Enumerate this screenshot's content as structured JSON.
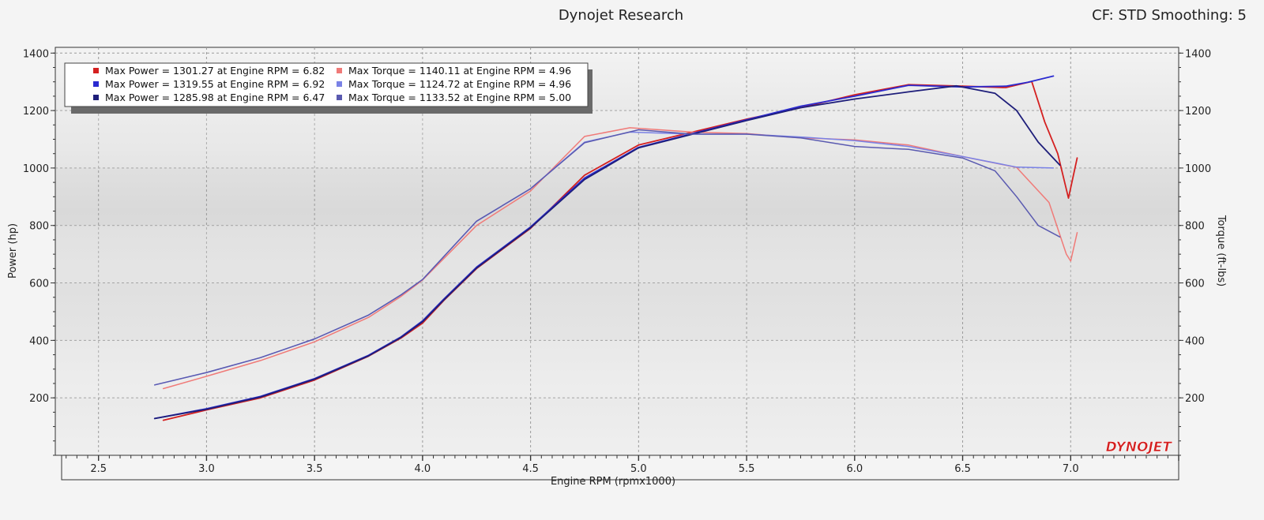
{
  "header": {
    "title": "Dynojet Research",
    "settings": "CF: STD Smoothing: 5"
  },
  "logo": "DYNOJET",
  "colors": {
    "red_power": "#d42020",
    "red_torque": "#f07a78",
    "blue_power": "#2a2ad0",
    "blue_torque": "#7a82e6",
    "navy_power": "#1e1e7a",
    "navy_torque": "#5a5ab0"
  },
  "chart_data": {
    "type": "line",
    "xlabel": "Engine RPM (rpmx1000)",
    "ylabel_left": "Power (hp)",
    "ylabel_right": "Torque (ft-lbs)",
    "xlim": [
      2.3,
      7.5
    ],
    "ylim": [
      0,
      1420
    ],
    "x_ticks": [
      "2.5",
      "3.0",
      "3.5",
      "4.0",
      "4.5",
      "5.0",
      "5.5",
      "6.0",
      "6.5",
      "7.0"
    ],
    "y_ticks": [
      "200",
      "400",
      "600",
      "800",
      "1000",
      "1200",
      "1400"
    ],
    "grid": true,
    "legend_placement": "top-left",
    "legend": [
      {
        "label": "Max Power = 1301.27 at Engine RPM = 6.82",
        "color": "#d42020"
      },
      {
        "label": "Max Torque = 1140.11 at Engine RPM = 4.96",
        "color": "#f07a78"
      },
      {
        "label": "Max Power = 1319.55 at Engine RPM = 6.92",
        "color": "#2a2ad0"
      },
      {
        "label": "Max Torque = 1124.72 at Engine RPM = 4.96",
        "color": "#7a82e6"
      },
      {
        "label": "Max Power = 1285.98 at Engine RPM = 6.47",
        "color": "#1e1e7a"
      },
      {
        "label": "Max Torque = 1133.52 at Engine RPM = 5.00",
        "color": "#5a5ab0"
      }
    ],
    "series": [
      {
        "color": "#d42020",
        "kind": "power",
        "x": [
          2.8,
          3.0,
          3.25,
          3.5,
          3.75,
          3.9,
          4.0,
          4.1,
          4.25,
          4.5,
          4.75,
          5.0,
          5.25,
          5.5,
          5.75,
          6.0,
          6.25,
          6.5,
          6.7,
          6.82,
          6.88,
          6.94,
          6.99,
          7.03
        ],
        "y": [
          122,
          158,
          200,
          262,
          345,
          408,
          460,
          540,
          650,
          790,
          975,
          1080,
          1125,
          1170,
          1210,
          1255,
          1290,
          1285,
          1280,
          1301,
          1160,
          1050,
          895,
          1035
        ]
      },
      {
        "color": "#f07a78",
        "kind": "torque",
        "x": [
          2.8,
          3.0,
          3.25,
          3.5,
          3.75,
          3.9,
          4.0,
          4.25,
          4.5,
          4.75,
          4.96,
          5.25,
          5.5,
          5.75,
          6.0,
          6.25,
          6.5,
          6.75,
          6.9,
          6.98,
          7.0,
          7.03
        ],
        "y": [
          232,
          275,
          330,
          395,
          480,
          553,
          610,
          800,
          920,
          1110,
          1140,
          1125,
          1120,
          1105,
          1098,
          1080,
          1040,
          1002,
          880,
          700,
          676,
          775
        ]
      },
      {
        "color": "#2a2ad0",
        "kind": "power",
        "x": [
          2.76,
          3.0,
          3.25,
          3.5,
          3.75,
          3.9,
          4.0,
          4.1,
          4.25,
          4.5,
          4.75,
          5.0,
          5.25,
          5.5,
          5.75,
          6.0,
          6.25,
          6.5,
          6.7,
          6.8,
          6.92
        ],
        "y": [
          128,
          162,
          205,
          267,
          348,
          412,
          468,
          545,
          655,
          795,
          965,
          1072,
          1120,
          1168,
          1215,
          1250,
          1288,
          1282,
          1285,
          1298,
          1320
        ]
      },
      {
        "color": "#7a82e6",
        "kind": "torque",
        "x": [
          2.76,
          3.0,
          3.25,
          3.5,
          3.75,
          3.9,
          4.0,
          4.25,
          4.5,
          4.75,
          4.96,
          5.25,
          5.5,
          5.75,
          6.0,
          6.25,
          6.5,
          6.75,
          6.92
        ],
        "y": [
          245,
          288,
          340,
          405,
          488,
          558,
          612,
          815,
          928,
          1090,
          1125,
          1118,
          1118,
          1108,
          1095,
          1075,
          1040,
          1003,
          1000
        ]
      },
      {
        "color": "#1e1e7a",
        "kind": "power",
        "x": [
          2.76,
          3.0,
          3.25,
          3.5,
          3.75,
          3.9,
          4.0,
          4.1,
          4.25,
          4.5,
          4.75,
          5.0,
          5.25,
          5.5,
          5.75,
          6.0,
          6.25,
          6.47,
          6.65,
          6.75,
          6.85,
          6.95
        ],
        "y": [
          128,
          160,
          203,
          265,
          346,
          410,
          465,
          542,
          652,
          792,
          960,
          1070,
          1118,
          1165,
          1210,
          1240,
          1265,
          1286,
          1260,
          1200,
          1090,
          1010
        ]
      },
      {
        "color": "#5a5ab0",
        "kind": "torque",
        "x": [
          2.76,
          3.0,
          3.25,
          3.5,
          3.75,
          3.9,
          4.0,
          4.25,
          4.5,
          4.75,
          5.0,
          5.25,
          5.5,
          5.75,
          6.0,
          6.25,
          6.5,
          6.65,
          6.75,
          6.85,
          6.95
        ],
        "y": [
          245,
          288,
          340,
          405,
          488,
          558,
          612,
          815,
          928,
          1088,
          1133,
          1118,
          1118,
          1105,
          1075,
          1065,
          1035,
          990,
          900,
          800,
          760
        ]
      }
    ]
  }
}
